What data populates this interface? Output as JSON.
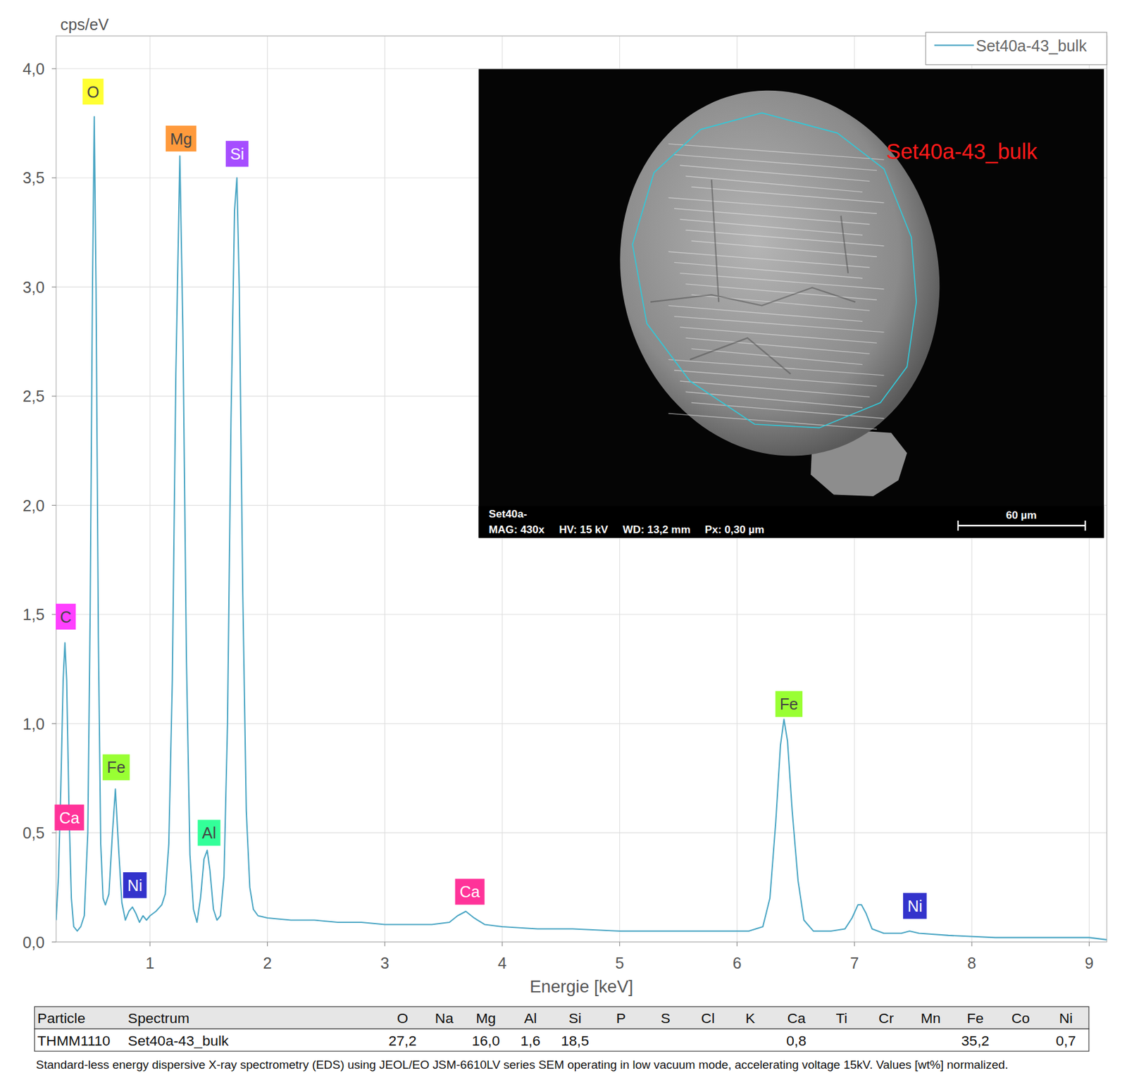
{
  "chart_data": {
    "type": "line",
    "y_label": "cps/eV",
    "x_label": "Energie [keV]",
    "x": [
      0.2,
      0.22,
      0.24,
      0.26,
      0.275,
      0.29,
      0.31,
      0.33,
      0.35,
      0.38,
      0.41,
      0.44,
      0.47,
      0.49,
      0.51,
      0.525,
      0.54,
      0.56,
      0.58,
      0.6,
      0.62,
      0.65,
      0.68,
      0.705,
      0.73,
      0.76,
      0.79,
      0.82,
      0.85,
      0.88,
      0.91,
      0.94,
      0.97,
      1.0,
      1.05,
      1.1,
      1.13,
      1.16,
      1.19,
      1.22,
      1.254,
      1.28,
      1.31,
      1.34,
      1.37,
      1.4,
      1.43,
      1.46,
      1.487,
      1.51,
      1.54,
      1.57,
      1.6,
      1.63,
      1.66,
      1.69,
      1.72,
      1.74,
      1.76,
      1.79,
      1.82,
      1.85,
      1.88,
      1.92,
      2.0,
      2.2,
      2.4,
      2.6,
      2.8,
      3.0,
      3.2,
      3.4,
      3.55,
      3.62,
      3.69,
      3.76,
      3.85,
      4.0,
      4.3,
      4.6,
      5.0,
      5.4,
      5.8,
      6.1,
      6.22,
      6.28,
      6.33,
      6.37,
      6.4,
      6.43,
      6.47,
      6.52,
      6.57,
      6.65,
      6.8,
      6.92,
      6.98,
      7.03,
      7.06,
      7.1,
      7.15,
      7.25,
      7.4,
      7.47,
      7.55,
      7.8,
      8.2,
      8.6,
      9.0,
      9.15
    ],
    "series": [
      {
        "name": "Set40a-43_bulk",
        "color": "#4ba6c4",
        "values": [
          0.1,
          0.3,
          0.7,
          1.2,
          1.37,
          1.2,
          0.6,
          0.2,
          0.07,
          0.05,
          0.07,
          0.12,
          0.5,
          1.5,
          3.0,
          3.78,
          3.0,
          1.4,
          0.45,
          0.2,
          0.17,
          0.22,
          0.5,
          0.7,
          0.45,
          0.18,
          0.1,
          0.14,
          0.16,
          0.13,
          0.09,
          0.12,
          0.1,
          0.12,
          0.14,
          0.17,
          0.22,
          0.45,
          1.2,
          2.6,
          3.6,
          2.8,
          1.3,
          0.4,
          0.15,
          0.09,
          0.2,
          0.38,
          0.42,
          0.33,
          0.15,
          0.1,
          0.12,
          0.3,
          1.0,
          2.4,
          3.35,
          3.5,
          3.0,
          1.6,
          0.6,
          0.25,
          0.15,
          0.12,
          0.11,
          0.1,
          0.1,
          0.09,
          0.09,
          0.08,
          0.08,
          0.08,
          0.09,
          0.12,
          0.14,
          0.11,
          0.08,
          0.07,
          0.06,
          0.06,
          0.05,
          0.05,
          0.05,
          0.05,
          0.07,
          0.2,
          0.55,
          0.9,
          1.02,
          0.92,
          0.6,
          0.28,
          0.1,
          0.05,
          0.05,
          0.06,
          0.11,
          0.17,
          0.17,
          0.13,
          0.06,
          0.04,
          0.04,
          0.05,
          0.04,
          0.03,
          0.02,
          0.02,
          0.02,
          0.01
        ]
      }
    ],
    "xlim": [
      0.2,
      9.15
    ],
    "ylim": [
      0,
      4.15
    ],
    "xticks": [
      1,
      2,
      3,
      4,
      5,
      6,
      7,
      8,
      9
    ],
    "yticks": [
      {
        "value": 0,
        "label": "0,0"
      },
      {
        "value": 0.5,
        "label": "0,5"
      },
      {
        "value": 1,
        "label": "1,0"
      },
      {
        "value": 1.5,
        "label": "1,5"
      },
      {
        "value": 2,
        "label": "2,0"
      },
      {
        "value": 2.5,
        "label": "2,5"
      },
      {
        "value": 3,
        "label": "3,0"
      },
      {
        "value": 3.5,
        "label": "3,5"
      },
      {
        "value": 4,
        "label": "4,0"
      }
    ],
    "grid": true,
    "legend": "upper right",
    "annotations": [
      {
        "text": "O",
        "x": 0.515,
        "y": 3.895,
        "color": "#ffff33"
      },
      {
        "text": "Mg",
        "x": 1.264,
        "y": 3.68,
        "color": "#ff9a3c"
      },
      {
        "text": "Si",
        "x": 1.742,
        "y": 3.61,
        "color": "#a64dff"
      },
      {
        "text": "C",
        "x": 0.282,
        "y": 1.49,
        "color": "#ff40ff"
      },
      {
        "text": "Fe",
        "x": 0.712,
        "y": 0.8,
        "color": "#99ff33"
      },
      {
        "text": "Ca",
        "x": 0.313,
        "y": 0.57,
        "color": "#ff3399"
      },
      {
        "text": "Ni",
        "x": 0.871,
        "y": 0.26,
        "color": "#3333cc"
      },
      {
        "text": "Al",
        "x": 1.503,
        "y": 0.5,
        "color": "#33ff99"
      },
      {
        "text": "Ca",
        "x": 3.724,
        "y": 0.23,
        "color": "#ff3399"
      },
      {
        "text": "Fe",
        "x": 6.442,
        "y": 1.09,
        "color": "#99ff33"
      },
      {
        "text": "Ni",
        "x": 7.515,
        "y": 0.165,
        "color": "#3333cc"
      }
    ]
  },
  "inset": {
    "label": "Set40a-43_bulk",
    "title": "Set40a-",
    "info": [
      "MAG: 430x",
      "HV: 15 kV",
      "WD: 13,2 mm",
      "Px: 0,30 µm"
    ],
    "scale_bar": "60 µm"
  },
  "table": {
    "header": [
      "Particle",
      "Spectrum",
      "O",
      "Na",
      "Mg",
      "Al",
      "Si",
      "P",
      "S",
      "Cl",
      "K",
      "Ca",
      "Ti",
      "Cr",
      "Mn",
      "Fe",
      "Co",
      "Ni"
    ],
    "rows": [
      [
        "THMM1110",
        "Set40a-43_bulk",
        "27,2",
        null,
        "16,0",
        "1,6",
        "18,5",
        null,
        null,
        null,
        null,
        "0,8",
        null,
        null,
        null,
        "35,2",
        null,
        "0,7"
      ]
    ]
  },
  "caption": "Standard-less energy dispersive X-ray spectrometry (EDS) using JEOL/EO JSM-6610LV series SEM operating in low vacuum mode, accelerating voltage 15kV. Values [wt%] normalized."
}
